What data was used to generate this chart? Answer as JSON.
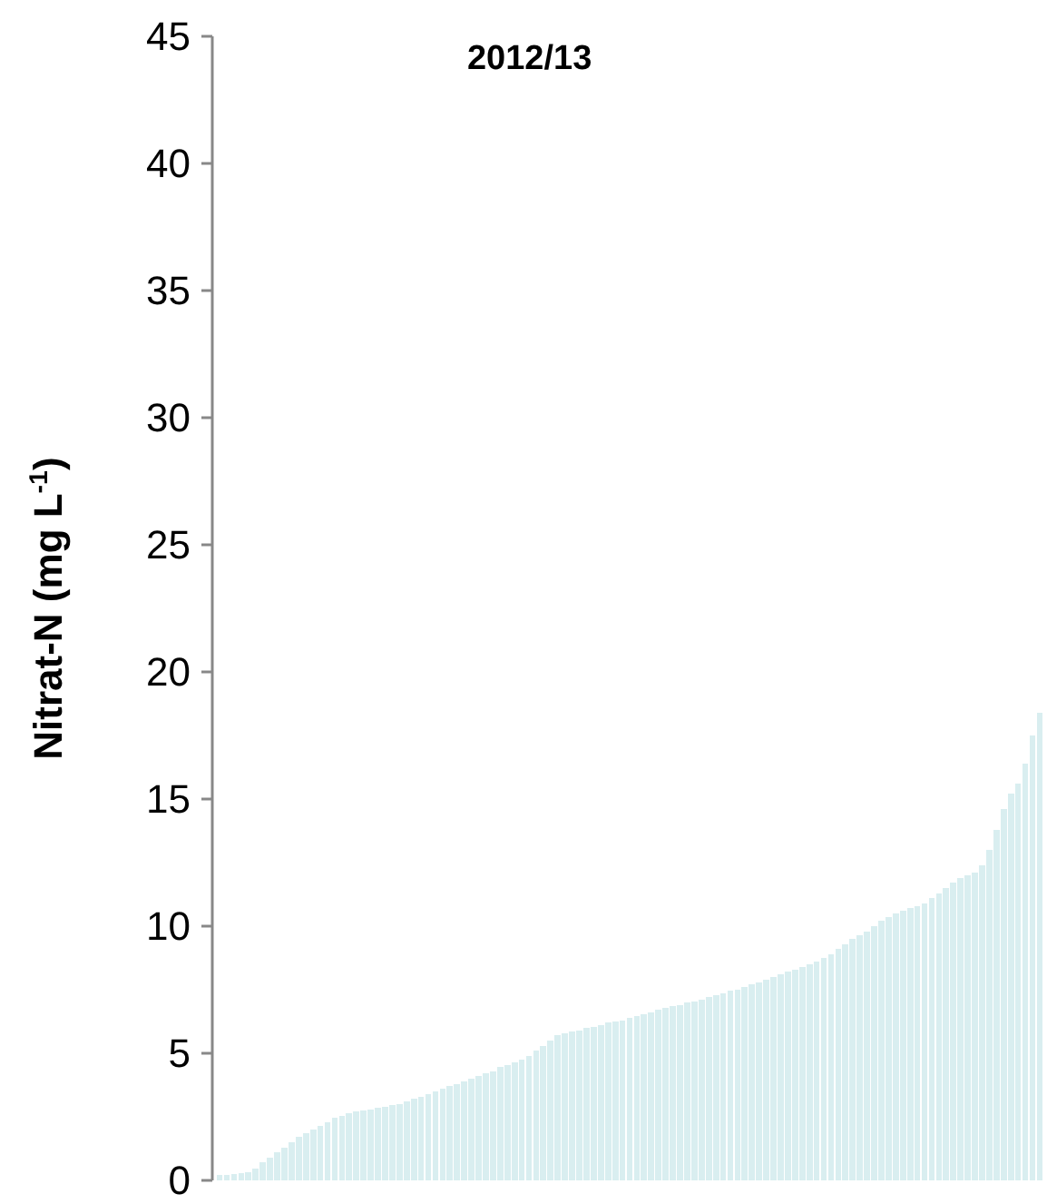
{
  "chart_data": {
    "type": "bar",
    "title": "2012/13",
    "ylabel": "Nitrat-N (mg L$^{-1}$)",
    "categories": [
      null,
      null,
      null,
      null,
      null,
      null,
      null,
      null,
      null,
      null,
      null,
      null,
      null,
      null,
      null,
      null,
      null,
      null,
      null,
      null,
      null,
      null,
      null,
      null,
      null,
      null,
      null,
      null,
      null,
      null,
      null,
      null,
      null,
      null,
      null,
      null,
      null,
      null,
      null,
      null,
      null,
      null,
      null,
      null,
      null,
      null,
      null,
      null,
      null,
      null,
      null,
      null,
      null,
      null,
      null,
      null,
      null,
      null,
      null,
      null,
      null,
      null,
      null,
      null,
      null,
      null,
      null,
      null,
      null,
      null,
      null,
      null,
      null,
      null,
      null,
      null,
      null,
      null,
      null,
      null,
      null,
      null,
      null,
      null,
      null,
      null,
      null,
      null,
      null,
      null,
      null,
      null,
      null,
      null,
      null,
      null,
      null,
      null,
      null,
      null,
      null,
      null,
      null,
      null,
      null,
      null,
      null,
      null,
      null,
      null,
      null,
      null,
      null,
      null,
      null
    ],
    "values": [
      0.2,
      0.22,
      0.25,
      0.28,
      0.32,
      0.45,
      0.7,
      0.9,
      1.1,
      1.3,
      1.5,
      1.7,
      1.85,
      2.0,
      2.15,
      2.3,
      2.45,
      2.55,
      2.65,
      2.7,
      2.75,
      2.8,
      2.85,
      2.9,
      2.95,
      3.0,
      3.1,
      3.2,
      3.3,
      3.4,
      3.5,
      3.6,
      3.7,
      3.8,
      3.9,
      4.0,
      4.1,
      4.2,
      4.3,
      4.45,
      4.55,
      4.65,
      4.75,
      4.9,
      5.1,
      5.3,
      5.5,
      5.7,
      5.8,
      5.85,
      5.9,
      6.0,
      6.05,
      6.1,
      6.2,
      6.25,
      6.3,
      6.4,
      6.45,
      6.55,
      6.6,
      6.7,
      6.8,
      6.85,
      6.9,
      7.0,
      7.05,
      7.1,
      7.2,
      7.3,
      7.35,
      7.45,
      7.5,
      7.6,
      7.7,
      7.8,
      7.9,
      8.0,
      8.1,
      8.2,
      8.3,
      8.4,
      8.5,
      8.6,
      8.75,
      8.9,
      9.1,
      9.3,
      9.5,
      9.65,
      9.8,
      10.0,
      10.2,
      10.35,
      10.5,
      10.6,
      10.7,
      10.8,
      10.9,
      11.1,
      11.3,
      11.5,
      11.7,
      11.9,
      12.0,
      12.1,
      12.4,
      13.0,
      13.8,
      14.6,
      15.2,
      15.6,
      16.4,
      17.5,
      18.4
    ],
    "color": "#d9eef0",
    "ylim": [
      0,
      45
    ],
    "yticks": [
      0,
      5,
      10,
      15,
      20,
      25,
      30,
      35,
      40,
      45
    ],
    "grid": false
  }
}
